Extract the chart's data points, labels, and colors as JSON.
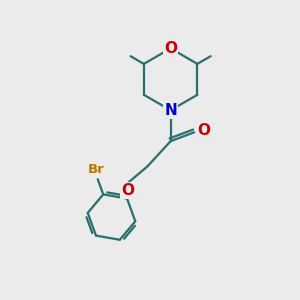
{
  "bg_color": "#ebebeb",
  "bond_color": "#2a6e6e",
  "bond_width": 1.6,
  "atom_colors": {
    "O_ring": "#cc0000",
    "O_carbonyl": "#cc0000",
    "O_ether": "#cc0000",
    "N": "#0000cc",
    "Br": "#b87800"
  },
  "font_size_atom": 10,
  "canvas_xlim": [
    0,
    10
  ],
  "canvas_ylim": [
    0,
    10
  ]
}
